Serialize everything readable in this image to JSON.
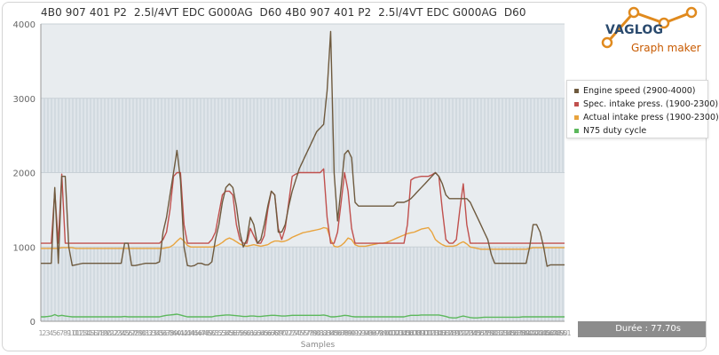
{
  "title": "4B0 907 401 P2  2.5l/4VT EDC G000AG  D60 4B0 907 401 P2  2.5l/4VT EDC G000AG  D60",
  "logo": {
    "name": "VAGLOG",
    "subtitle": "Graph maker"
  },
  "duration_label": "Durée : 77.70s",
  "colors": {
    "background": "#ffffff",
    "plot_band_light": "#e6ebee",
    "plot_band_grid": "#cdd6dd",
    "accent_orange": "#e08a1e",
    "logo_blue": "#2a4a6e"
  },
  "chart_data": {
    "type": "line",
    "title": "4B0 907 401 P2  2.5l/4VT EDC G000AG  D60 4B0 907 401 P2  2.5l/4VT EDC G000AG  D60",
    "xlabel": "Samples",
    "ylabel": "",
    "ylim": [
      0,
      4000
    ],
    "yticks": [
      "0",
      "1000",
      "2000",
      "3000",
      "4000"
    ],
    "plot_bands": [
      {
        "from": 0,
        "to": 1000,
        "style": "gridded"
      },
      {
        "from": 1000,
        "to": 2000,
        "style": "light"
      },
      {
        "from": 2000,
        "to": 3000,
        "style": "gridded"
      },
      {
        "from": 3000,
        "to": 4000,
        "style": "light"
      }
    ],
    "legend_position": "right",
    "x": [
      0,
      1,
      2,
      3,
      4,
      5,
      6,
      7,
      8,
      9,
      10,
      11,
      12,
      13,
      14,
      15,
      16,
      17,
      18,
      19,
      20,
      21,
      22,
      23,
      24,
      25,
      26,
      27,
      28,
      29,
      30,
      31,
      32,
      33,
      34,
      35,
      36,
      37,
      38,
      39,
      40,
      41,
      42,
      43,
      44,
      45,
      46,
      47,
      48,
      49,
      50,
      51,
      52,
      53,
      54,
      55,
      56,
      57,
      58,
      59,
      60,
      61,
      62,
      63,
      64,
      65,
      66,
      67,
      68,
      69,
      70,
      71,
      72,
      73,
      74,
      75,
      76,
      77,
      78,
      79,
      80,
      81,
      82,
      83,
      84,
      85,
      86,
      87,
      88,
      89,
      90,
      91,
      92,
      93,
      94,
      95,
      96,
      97,
      98,
      99,
      100,
      101,
      102,
      103,
      104,
      105,
      106,
      107,
      108,
      109,
      110,
      111,
      112,
      113,
      114,
      115,
      116,
      117,
      118,
      119,
      120,
      121,
      122,
      123,
      124,
      125,
      126,
      127,
      128,
      129,
      130,
      131,
      132,
      133,
      134,
      135,
      136,
      137,
      138,
      139,
      140,
      141,
      142,
      143,
      144,
      145,
      146,
      147,
      148,
      149,
      150
    ],
    "series": [
      {
        "name": "Engine speed (2900-4000)",
        "color": "#6e5a3e",
        "values": [
          780,
          780,
          780,
          780,
          1800,
          780,
          1950,
          1950,
          1000,
          750,
          760,
          770,
          780,
          780,
          780,
          780,
          780,
          780,
          780,
          780,
          780,
          780,
          780,
          780,
          1050,
          1050,
          750,
          750,
          760,
          770,
          780,
          780,
          780,
          780,
          800,
          1200,
          1400,
          1700,
          2000,
          2300,
          1900,
          1000,
          750,
          740,
          750,
          780,
          780,
          760,
          760,
          800,
          1100,
          1300,
          1600,
          1800,
          1850,
          1800,
          1550,
          1200,
          1000,
          1100,
          1400,
          1300,
          1050,
          1100,
          1300,
          1550,
          1750,
          1700,
          1200,
          1200,
          1300,
          1550,
          1750,
          1900,
          2050,
          2150,
          2250,
          2350,
          2450,
          2550,
          2600,
          2650,
          3100,
          3900,
          2000,
          1350,
          1800,
          2250,
          2300,
          2200,
          1600,
          1550,
          1550,
          1550,
          1550,
          1550,
          1550,
          1550,
          1550,
          1550,
          1550,
          1550,
          1600,
          1600,
          1600,
          1620,
          1650,
          1700,
          1750,
          1800,
          1850,
          1900,
          1950,
          2000,
          1950,
          1850,
          1700,
          1650,
          1650,
          1650,
          1650,
          1650,
          1650,
          1600,
          1500,
          1400,
          1300,
          1200,
          1100,
          900,
          780,
          780,
          780,
          780,
          780,
          780,
          780,
          780,
          780,
          780,
          1000,
          1300,
          1300,
          1200,
          1000,
          740,
          760,
          760,
          760,
          760,
          760
        ]
      },
      {
        "name": "Spec. intake press. (1900-2300)",
        "color": "#c0504d",
        "values": [
          1050,
          1050,
          1050,
          1050,
          1750,
          1050,
          1980,
          1050,
          1050,
          1050,
          1050,
          1050,
          1050,
          1050,
          1050,
          1050,
          1050,
          1050,
          1050,
          1050,
          1050,
          1050,
          1050,
          1050,
          1050,
          1050,
          1050,
          1050,
          1050,
          1050,
          1050,
          1050,
          1050,
          1050,
          1050,
          1100,
          1200,
          1500,
          1950,
          2000,
          2000,
          1300,
          1050,
          1050,
          1050,
          1050,
          1050,
          1050,
          1050,
          1100,
          1200,
          1450,
          1700,
          1750,
          1750,
          1700,
          1300,
          1100,
          1050,
          1050,
          1250,
          1150,
          1050,
          1050,
          1150,
          1500,
          1750,
          1700,
          1250,
          1100,
          1250,
          1600,
          1950,
          1980,
          2000,
          2000,
          2000,
          2000,
          2000,
          2000,
          2000,
          2050,
          1400,
          1050,
          1050,
          1200,
          1600,
          2000,
          1750,
          1250,
          1050,
          1050,
          1050,
          1050,
          1050,
          1050,
          1050,
          1050,
          1050,
          1050,
          1050,
          1050,
          1050,
          1050,
          1050,
          1300,
          1900,
          1930,
          1940,
          1950,
          1950,
          1950,
          1970,
          2000,
          1950,
          1500,
          1100,
          1050,
          1050,
          1100,
          1500,
          1850,
          1300,
          1050,
          1050,
          1050,
          1050,
          1050,
          1050,
          1050,
          1050,
          1050,
          1050,
          1050,
          1050,
          1050,
          1050,
          1050,
          1050,
          1050,
          1050,
          1050,
          1050,
          1050,
          1050,
          1050,
          1050,
          1050,
          1050,
          1050,
          1050
        ]
      },
      {
        "name": "Actual intake press (1900-2300)",
        "color": "#e8a33d",
        "values": [
          980,
          980,
          980,
          980,
          980,
          980,
          990,
          990,
          990,
          990,
          980,
          980,
          980,
          980,
          980,
          980,
          980,
          980,
          980,
          980,
          980,
          980,
          980,
          980,
          980,
          980,
          980,
          980,
          980,
          980,
          980,
          980,
          980,
          980,
          980,
          980,
          990,
          1000,
          1030,
          1080,
          1120,
          1080,
          1020,
          1000,
          1000,
          1000,
          1000,
          1000,
          1000,
          1000,
          1010,
          1030,
          1060,
          1100,
          1120,
          1100,
          1070,
          1040,
          1020,
          1010,
          1020,
          1030,
          1020,
          1010,
          1020,
          1030,
          1060,
          1080,
          1080,
          1070,
          1080,
          1100,
          1130,
          1150,
          1170,
          1190,
          1200,
          1210,
          1220,
          1230,
          1240,
          1260,
          1250,
          1100,
          1010,
          1000,
          1020,
          1060,
          1120,
          1100,
          1030,
          1010,
          1010,
          1010,
          1020,
          1030,
          1040,
          1050,
          1050,
          1060,
          1080,
          1100,
          1120,
          1140,
          1160,
          1180,
          1190,
          1200,
          1220,
          1240,
          1250,
          1260,
          1200,
          1100,
          1060,
          1030,
          1010,
          1010,
          1010,
          1020,
          1050,
          1070,
          1040,
          1000,
          990,
          980,
          970,
          970,
          970,
          970,
          970,
          970,
          970,
          970,
          970,
          970,
          970,
          970,
          970,
          970,
          980,
          990,
          990,
          990,
          990,
          990,
          990,
          990,
          990,
          990,
          990
        ]
      },
      {
        "name": "N75 duty cycle",
        "color": "#5cb85c",
        "values": [
          60,
          60,
          65,
          70,
          90,
          70,
          80,
          70,
          65,
          60,
          60,
          60,
          60,
          60,
          60,
          60,
          60,
          60,
          60,
          60,
          60,
          60,
          60,
          60,
          65,
          60,
          60,
          60,
          60,
          60,
          60,
          60,
          60,
          60,
          60,
          70,
          80,
          85,
          90,
          95,
          85,
          70,
          60,
          60,
          60,
          60,
          60,
          60,
          60,
          60,
          70,
          75,
          80,
          85,
          85,
          80,
          75,
          70,
          65,
          65,
          70,
          70,
          65,
          65,
          70,
          75,
          80,
          80,
          75,
          70,
          70,
          75,
          80,
          80,
          80,
          80,
          80,
          80,
          80,
          80,
          80,
          85,
          75,
          60,
          60,
          65,
          70,
          80,
          75,
          65,
          60,
          60,
          60,
          60,
          60,
          60,
          60,
          60,
          60,
          60,
          60,
          60,
          60,
          60,
          60,
          70,
          80,
          80,
          80,
          85,
          85,
          85,
          85,
          85,
          85,
          75,
          65,
          50,
          45,
          45,
          60,
          70,
          60,
          50,
          45,
          45,
          50,
          55,
          55,
          55,
          55,
          55,
          55,
          55,
          55,
          55,
          55,
          55,
          60,
          60,
          60,
          60,
          60,
          60,
          60,
          60,
          60,
          60,
          60,
          60,
          60
        ]
      }
    ]
  }
}
